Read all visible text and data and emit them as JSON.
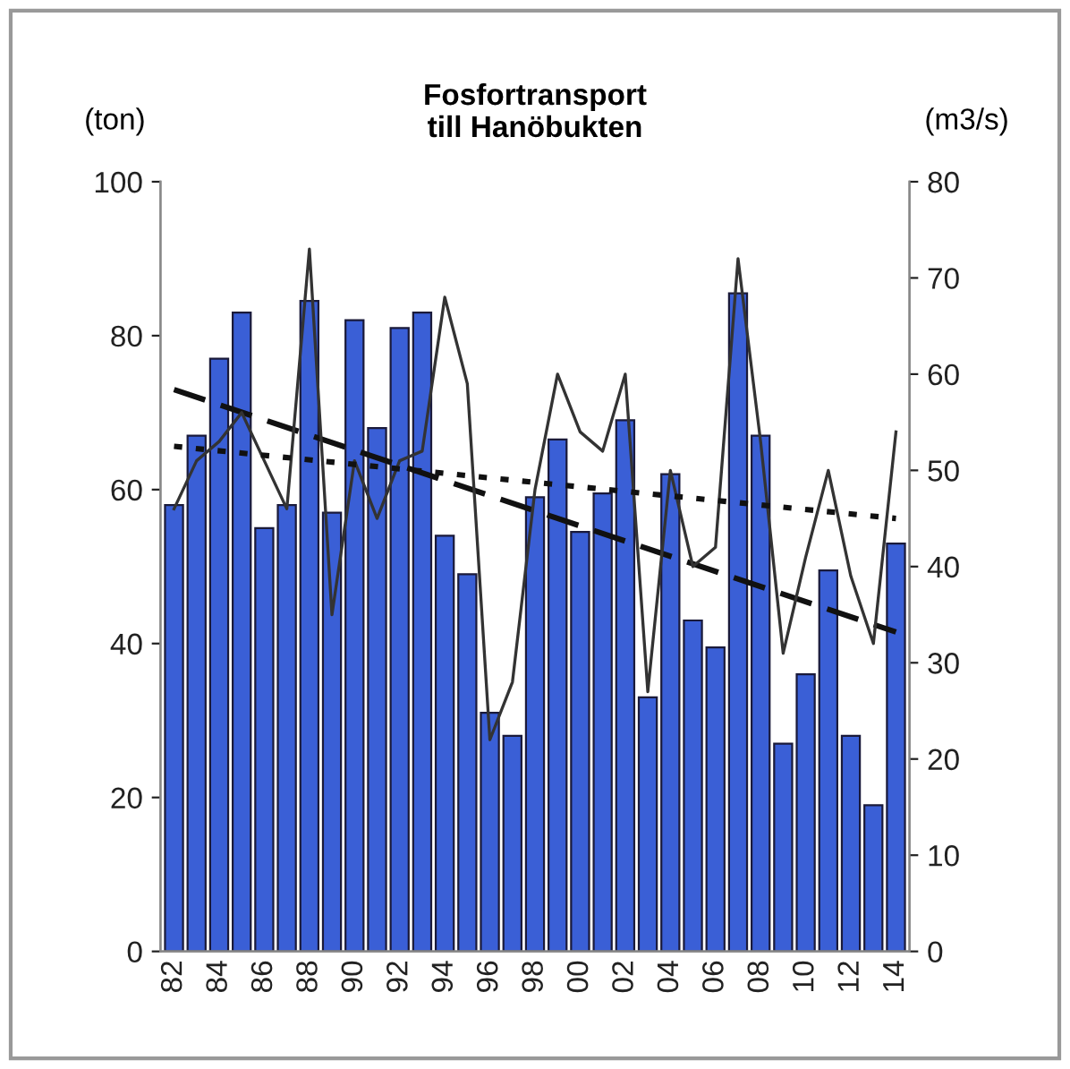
{
  "chart_data": {
    "type": "bar",
    "title": "Fosfortransport\ntill Hanöbukten",
    "ylabel": "(ton)",
    "y2label": "(m3/s)",
    "categories": [
      "82",
      null,
      "84",
      null,
      "86",
      null,
      "88",
      null,
      "90",
      null,
      "92",
      null,
      "94",
      null,
      "96",
      null,
      "98",
      null,
      "00",
      null,
      "02",
      null,
      "04",
      null,
      "06",
      null,
      "08",
      null,
      "10",
      null,
      "12",
      null,
      "14"
    ],
    "series": [
      {
        "color": "#3a5fd6",
        "values": [
          58,
          67,
          77,
          83,
          55,
          58,
          84.5,
          57,
          82,
          68,
          81,
          83,
          54,
          49,
          31,
          28,
          59,
          66.5,
          54.5,
          59.5,
          69,
          33,
          62,
          43,
          39.5,
          85.5,
          67,
          27,
          36,
          49.5,
          28,
          19,
          53
        ]
      },
      {
        "type": "line",
        "axis": "y2",
        "color": "#333333",
        "line_style": "solid",
        "values": [
          46,
          51,
          53,
          56,
          51,
          46,
          73,
          35,
          51,
          45,
          51,
          52,
          68,
          59,
          22,
          28,
          48,
          60,
          54,
          52,
          60,
          27,
          50,
          40,
          42,
          72,
          53,
          31,
          41,
          50,
          39,
          32,
          54
        ]
      },
      {
        "type": "line",
        "axis": "y2",
        "color": "#111111",
        "line_style": "dotted",
        "values": [
          52.5,
          null,
          null,
          null,
          null,
          null,
          null,
          null,
          null,
          null,
          null,
          null,
          null,
          null,
          null,
          null,
          null,
          null,
          null,
          null,
          null,
          null,
          null,
          null,
          null,
          null,
          null,
          null,
          null,
          null,
          null,
          null,
          45
        ]
      },
      {
        "type": "line",
        "color": "#111111",
        "line_style": "dashed",
        "values": [
          73,
          null,
          null,
          null,
          null,
          null,
          null,
          null,
          null,
          null,
          null,
          null,
          null,
          null,
          null,
          null,
          null,
          null,
          null,
          null,
          null,
          null,
          null,
          null,
          null,
          null,
          null,
          null,
          null,
          null,
          null,
          null,
          41.5
        ]
      }
    ],
    "ylim": [
      0,
      100
    ],
    "yticks": [
      0,
      20,
      40,
      60,
      80,
      100
    ],
    "y2lim": [
      0,
      80
    ],
    "y2ticks": [
      0,
      10,
      20,
      30,
      40,
      50,
      60,
      70,
      80
    ],
    "grid": false,
    "legend": false
  }
}
